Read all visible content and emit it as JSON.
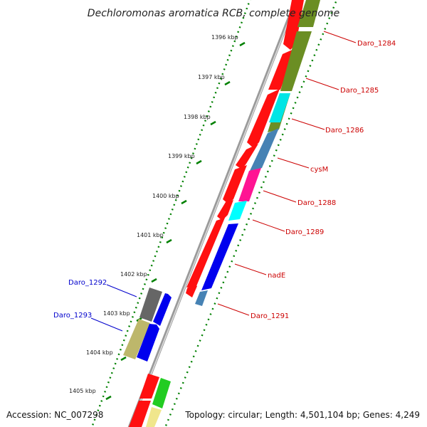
{
  "title": "Dechloromonas aromatica RCB, complete genome",
  "scale": {
    "unit": "kbp",
    "ticks": [
      "1396 kbp",
      "1397 kbp",
      "1398 kbp",
      "1399 kbp",
      "1400 kbp",
      "1401 kbp",
      "1402 kbp",
      "1403 kbp",
      "1404 kbp",
      "1405 kbp"
    ]
  },
  "genes_forward": [
    {
      "label": "Daro_1284"
    },
    {
      "label": "Daro_1285"
    },
    {
      "label": "Daro_1286"
    },
    {
      "label": "cysM"
    },
    {
      "label": "Daro_1288"
    },
    {
      "label": "Daro_1289"
    },
    {
      "label": "nadE"
    },
    {
      "label": "Daro_1291"
    }
  ],
  "genes_reverse": [
    {
      "label": "Daro_1292"
    },
    {
      "label": "Daro_1293"
    }
  ],
  "footer": {
    "accession": "Accession: NC_007298",
    "summary": "Topology: circular; Length: 4,501,104 bp; Genes: 4,249"
  },
  "colors": {
    "forward_label": "#cc0000",
    "reverse_label": "#0000cc",
    "tick": "#008000"
  }
}
